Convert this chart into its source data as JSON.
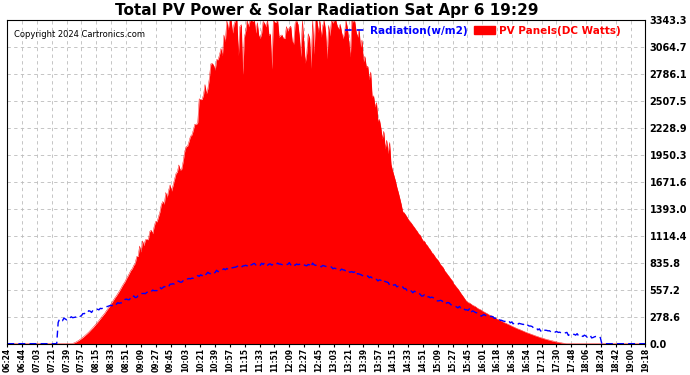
{
  "title": "Total PV Power & Solar Radiation Sat Apr 6 19:29",
  "copyright": "Copyright 2024 Cartronics.com",
  "legend_radiation": "Radiation(w/m2)",
  "legend_panels": "PV Panels(DC Watts)",
  "legend_radiation_color": "blue",
  "legend_panels_color": "red",
  "ymax": 3343.3,
  "yticks": [
    0.0,
    278.6,
    557.2,
    835.8,
    1114.4,
    1393.0,
    1671.6,
    1950.3,
    2228.9,
    2507.5,
    2786.1,
    3064.7,
    3343.3
  ],
  "background_color": "#ffffff",
  "plot_bg_color": "#ffffff",
  "grid_color": "#bbbbbb",
  "title_fontsize": 11,
  "x_tick_labels": [
    "06:24",
    "06:44",
    "07:03",
    "07:21",
    "07:39",
    "07:57",
    "08:15",
    "08:33",
    "08:51",
    "09:09",
    "09:27",
    "09:45",
    "10:03",
    "10:21",
    "10:39",
    "10:57",
    "11:15",
    "11:33",
    "11:51",
    "12:09",
    "12:27",
    "12:45",
    "13:03",
    "13:21",
    "13:39",
    "13:57",
    "14:15",
    "14:33",
    "14:51",
    "15:09",
    "15:27",
    "15:45",
    "16:01",
    "16:18",
    "16:36",
    "16:54",
    "17:12",
    "17:30",
    "17:48",
    "18:06",
    "18:24",
    "18:42",
    "19:00",
    "19:18"
  ],
  "num_points": 440,
  "solar_radiation_peak": 835.8,
  "pv_panel_peak": 3343.3
}
